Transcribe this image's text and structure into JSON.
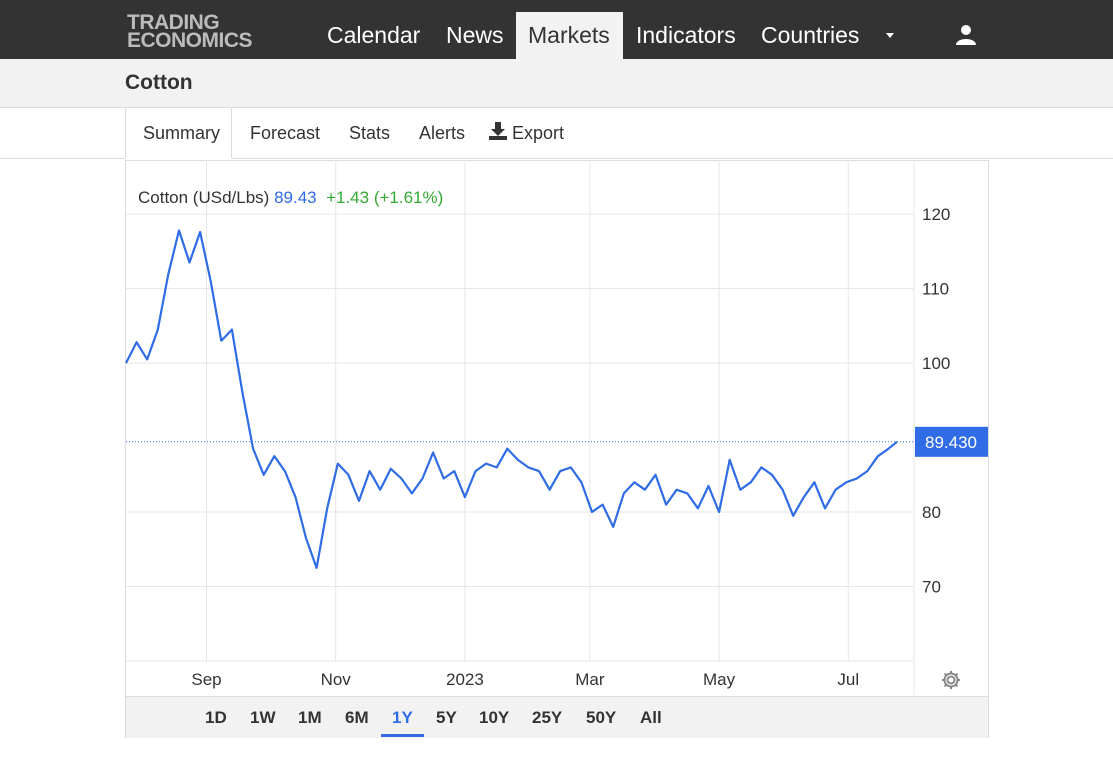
{
  "header": {
    "logo_line1": "TRADING",
    "logo_line2": "ECONOMICS",
    "nav": [
      {
        "label": "Calendar"
      },
      {
        "label": "News"
      },
      {
        "label": "Markets"
      },
      {
        "label": "Indicators"
      },
      {
        "label": "Countries"
      }
    ],
    "active_nav": "Markets"
  },
  "page": {
    "title": "Cotton"
  },
  "tabs": [
    {
      "label": "Summary"
    },
    {
      "label": "Forecast"
    },
    {
      "label": "Stats"
    },
    {
      "label": "Alerts"
    },
    {
      "label": "Export"
    }
  ],
  "legend": {
    "name": "Cotton (USd/Lbs)",
    "value": "89.43",
    "change": "+1.43 (+1.61%)"
  },
  "last_price_label": "89.430",
  "ranges": [
    "1D",
    "1W",
    "1M",
    "6M",
    "1Y",
    "5Y",
    "10Y",
    "25Y",
    "50Y",
    "All"
  ],
  "active_range": "1Y",
  "colors": {
    "line": "#2f6ce5",
    "positive": "#33aa33",
    "header_bg": "#333333"
  },
  "chart_data": {
    "type": "line",
    "series": [
      {
        "name": "Cotton (USd/Lbs)"
      }
    ],
    "x_tick_labels": [
      "Sep",
      "Nov",
      "2023",
      "Mar",
      "May",
      "Jul"
    ],
    "y_ticks": [
      70,
      80,
      100,
      110,
      120
    ],
    "ylim": [
      60,
      127
    ],
    "last_value": 89.43,
    "grid": true,
    "y_axis_side": "right",
    "x_dates": [
      "2022-07-25",
      "2022-07-30",
      "2022-08-04",
      "2022-08-09",
      "2022-08-14",
      "2022-08-19",
      "2022-08-24",
      "2022-08-29",
      "2022-09-03",
      "2022-09-08",
      "2022-09-13",
      "2022-09-18",
      "2022-09-23",
      "2022-09-28",
      "2022-10-03",
      "2022-10-08",
      "2022-10-13",
      "2022-10-18",
      "2022-10-23",
      "2022-10-28",
      "2022-11-02",
      "2022-11-07",
      "2022-11-12",
      "2022-11-17",
      "2022-11-22",
      "2022-11-27",
      "2022-12-02",
      "2022-12-07",
      "2022-12-12",
      "2022-12-17",
      "2022-12-22",
      "2022-12-27",
      "2023-01-01",
      "2023-01-06",
      "2023-01-11",
      "2023-01-16",
      "2023-01-21",
      "2023-01-26",
      "2023-01-31",
      "2023-02-05",
      "2023-02-10",
      "2023-02-15",
      "2023-02-20",
      "2023-02-25",
      "2023-03-02",
      "2023-03-07",
      "2023-03-12",
      "2023-03-17",
      "2023-03-22",
      "2023-03-27",
      "2023-04-01",
      "2023-04-06",
      "2023-04-11",
      "2023-04-16",
      "2023-04-21",
      "2023-04-26",
      "2023-05-01",
      "2023-05-06",
      "2023-05-11",
      "2023-05-16",
      "2023-05-21",
      "2023-05-26",
      "2023-05-31",
      "2023-06-05",
      "2023-06-10",
      "2023-06-15",
      "2023-06-20",
      "2023-06-25",
      "2023-06-30",
      "2023-07-05",
      "2023-07-10",
      "2023-07-15",
      "2023-07-20",
      "2023-07-24"
    ],
    "values": [
      100.0,
      102.8,
      100.5,
      104.5,
      112.0,
      117.8,
      113.5,
      117.6,
      111.0,
      103.0,
      104.5,
      96.0,
      88.5,
      85.0,
      87.5,
      85.5,
      82.0,
      76.5,
      72.5,
      80.5,
      86.5,
      85.0,
      81.5,
      85.5,
      83.0,
      85.8,
      84.5,
      82.5,
      84.5,
      88.0,
      84.5,
      85.5,
      82.0,
      85.5,
      86.5,
      86.0,
      88.5,
      87.0,
      86.0,
      85.5,
      83.0,
      85.5,
      86.0,
      84.0,
      80.0,
      81.0,
      78.0,
      82.5,
      84.0,
      83.0,
      85.0,
      81.0,
      83.0,
      82.5,
      80.5,
      83.5,
      80.0,
      87.0,
      83.0,
      84.0,
      86.0,
      85.0,
      83.0,
      79.5,
      82.0,
      84.0,
      80.5,
      83.0,
      84.0,
      84.5,
      85.5,
      87.5,
      88.5,
      89.43
    ]
  }
}
